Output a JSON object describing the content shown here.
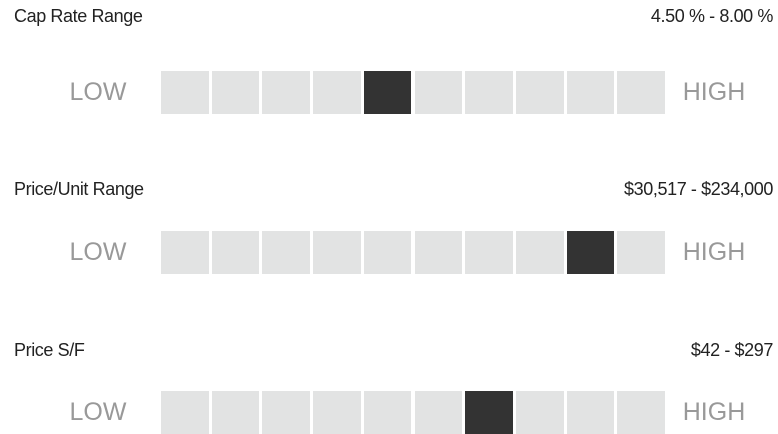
{
  "low_label": "LOW",
  "high_label": "HIGH",
  "rows": [
    {
      "title": "Cap Rate Range",
      "range": "4.50 % - 8.00 %",
      "segments": 10,
      "active": 5
    },
    {
      "title": "Price/Unit Range",
      "range": "$30,517 - $234,000",
      "segments": 10,
      "active": 9
    },
    {
      "title": "Price S/F",
      "range": "$42 - $297",
      "segments": 10,
      "active": 7
    }
  ]
}
